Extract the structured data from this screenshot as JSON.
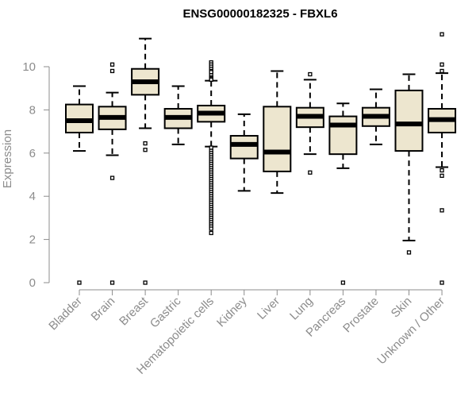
{
  "chart_data": {
    "type": "boxplot",
    "title": "ENSG00000182325 - FBXL6",
    "xlabel": "",
    "ylabel": "Expression",
    "ylim": [
      0,
      11.5
    ],
    "yticks": [
      0,
      2,
      4,
      6,
      8,
      10
    ],
    "colors": {
      "box_fill": "#ede6cf",
      "stroke": "#000000",
      "axis": "#8c8c8c"
    },
    "categories": [
      "Bladder",
      "Brain",
      "Breast",
      "Gastric",
      "Hematopoietic cells",
      "Kidney",
      "Liver",
      "Lung",
      "Pancreas",
      "Prostate",
      "Skin",
      "Unknown / Other"
    ],
    "boxes": [
      {
        "name": "Bladder",
        "whisker_low": 6.1,
        "q1": 6.95,
        "median": 7.5,
        "q3": 8.25,
        "whisker_high": 9.1,
        "outliers": [
          0
        ]
      },
      {
        "name": "Brain",
        "whisker_low": 5.9,
        "q1": 7.1,
        "median": 7.65,
        "q3": 8.15,
        "whisker_high": 8.8,
        "outliers": [
          10.1,
          9.8,
          4.85,
          0
        ]
      },
      {
        "name": "Breast",
        "whisker_low": 7.15,
        "q1": 8.7,
        "median": 9.3,
        "q3": 9.9,
        "whisker_high": 11.3,
        "outliers": [
          6.45,
          6.15,
          0
        ]
      },
      {
        "name": "Gastric",
        "whisker_low": 6.4,
        "q1": 7.15,
        "median": 7.65,
        "q3": 8.05,
        "whisker_high": 9.1,
        "outliers": []
      },
      {
        "name": "Hematopoietic cells",
        "whisker_low": 6.3,
        "q1": 7.45,
        "median": 7.85,
        "q3": 8.2,
        "whisker_high": 9.35,
        "outliers": [
          10.2,
          10.1,
          10.0,
          9.9,
          9.8,
          9.75,
          9.6,
          9.5,
          9.45,
          9.4,
          6.25,
          6.1,
          6.0,
          5.9,
          5.8,
          5.7,
          5.6,
          5.5,
          5.4,
          5.3,
          5.2,
          5.1,
          5.0,
          4.9,
          4.8,
          4.7,
          4.6,
          4.5,
          4.4,
          4.3,
          4.2,
          4.1,
          4.0,
          3.9,
          3.8,
          3.7,
          3.6,
          3.5,
          3.4,
          3.3,
          3.2,
          3.1,
          3.0,
          2.9,
          2.8,
          2.7,
          2.6,
          2.5,
          2.3
        ]
      },
      {
        "name": "Kidney",
        "whisker_low": 4.25,
        "q1": 5.75,
        "median": 6.4,
        "q3": 6.8,
        "whisker_high": 7.8,
        "outliers": []
      },
      {
        "name": "Liver",
        "whisker_low": 4.15,
        "q1": 5.15,
        "median": 6.05,
        "q3": 8.15,
        "whisker_high": 9.8,
        "outliers": []
      },
      {
        "name": "Lung",
        "whisker_low": 5.95,
        "q1": 7.2,
        "median": 7.7,
        "q3": 8.1,
        "whisker_high": 9.4,
        "outliers": [
          9.65,
          5.1
        ]
      },
      {
        "name": "Pancreas",
        "whisker_low": 5.3,
        "q1": 5.95,
        "median": 7.3,
        "q3": 7.7,
        "whisker_high": 8.3,
        "outliers": [
          0
        ]
      },
      {
        "name": "Prostate",
        "whisker_low": 6.4,
        "q1": 7.25,
        "median": 7.7,
        "q3": 8.1,
        "whisker_high": 8.95,
        "outliers": []
      },
      {
        "name": "Skin",
        "whisker_low": 1.95,
        "q1": 6.1,
        "median": 7.35,
        "q3": 8.9,
        "whisker_high": 9.65,
        "outliers": [
          1.4
        ]
      },
      {
        "name": "Unknown / Other",
        "whisker_low": 5.35,
        "q1": 6.95,
        "median": 7.55,
        "q3": 8.05,
        "whisker_high": 9.7,
        "outliers": [
          11.5,
          10.1,
          9.8,
          5.2,
          4.95,
          3.35,
          0
        ]
      }
    ]
  }
}
